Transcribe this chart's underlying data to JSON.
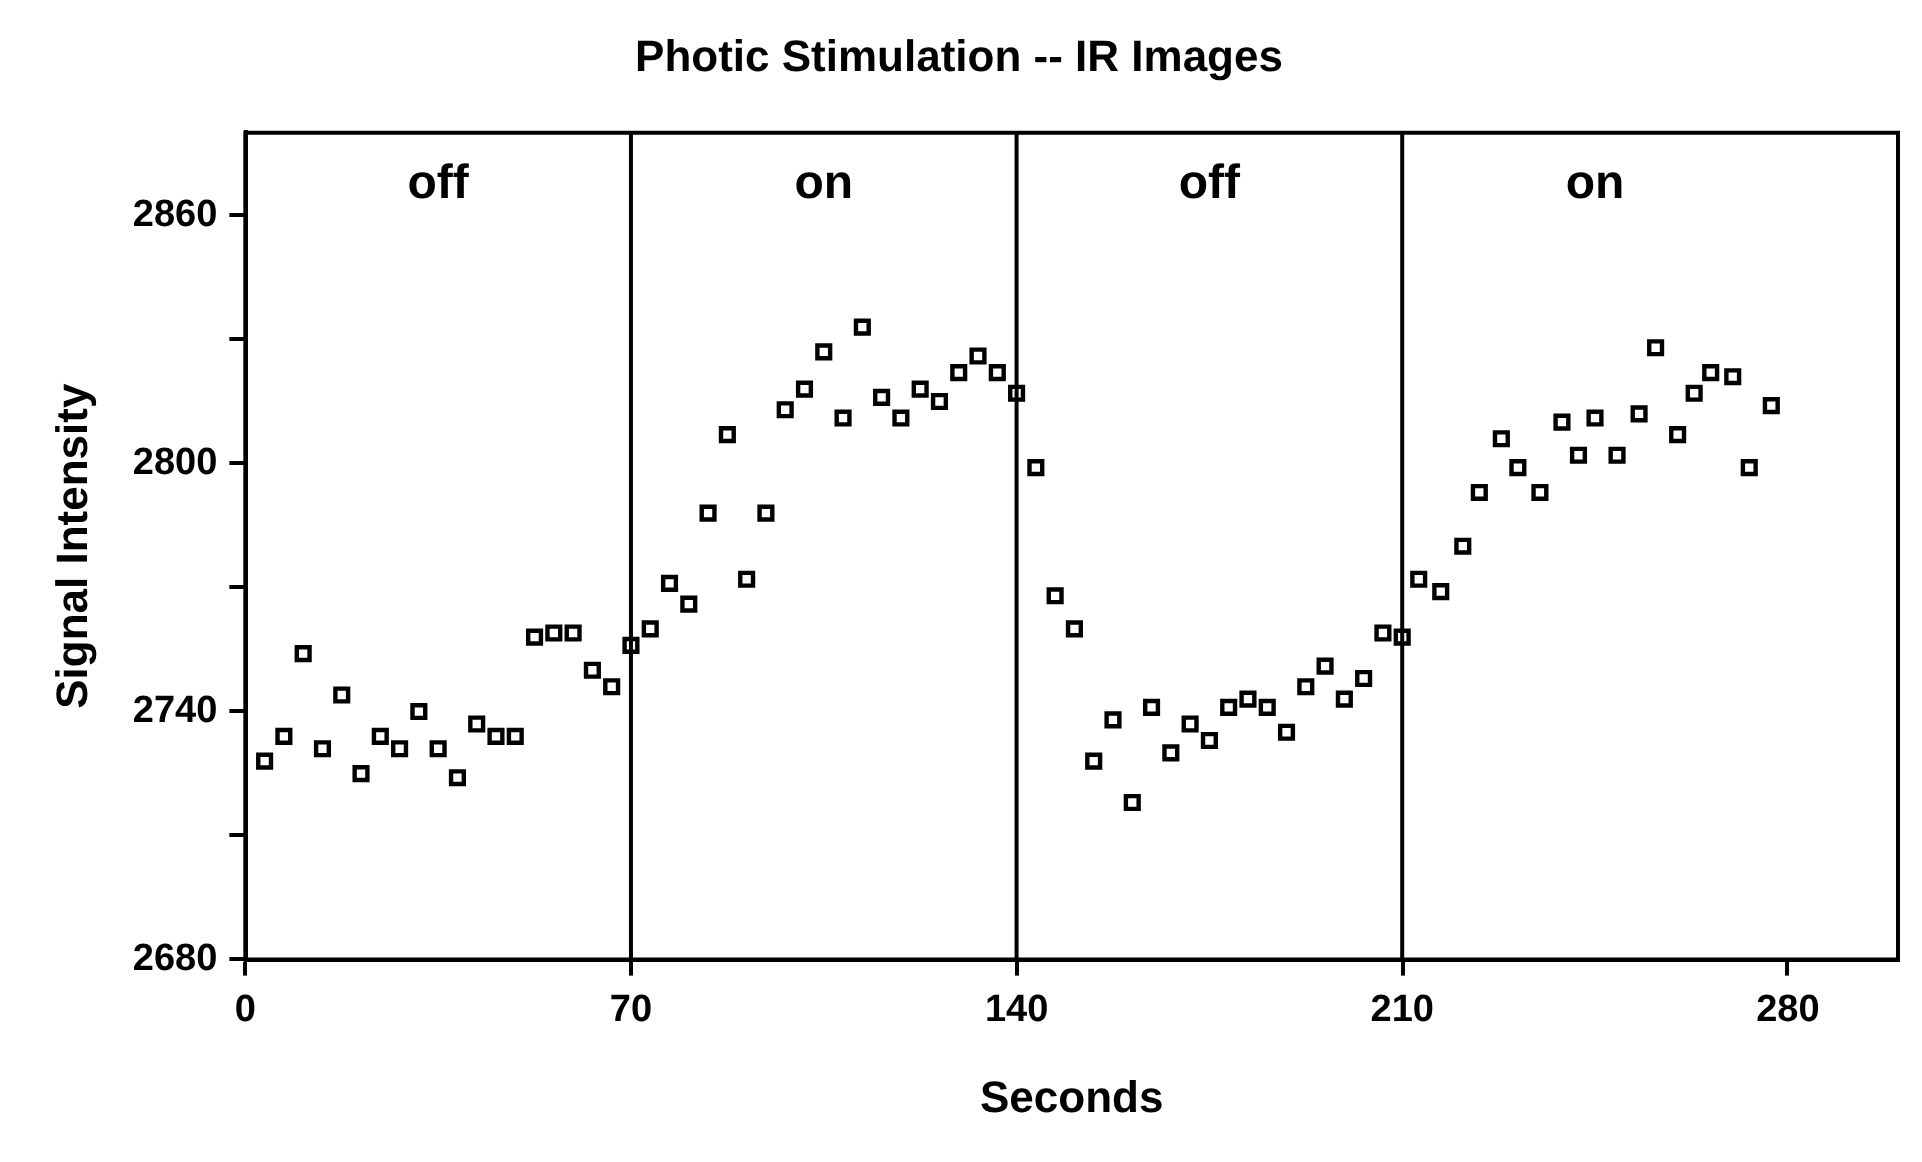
{
  "chart_data": {
    "type": "scatter",
    "title": "Photic Stimulation -- IR Images",
    "xlabel": "Seconds",
    "ylabel": "Signal Intensity",
    "marker": "square",
    "xlim": [
      0,
      300
    ],
    "xticks": [
      0,
      70,
      140,
      210,
      280
    ],
    "ylim": [
      2680,
      2880
    ],
    "yticks": [
      2680,
      {
        "value": 2710,
        "label": null
      },
      2740,
      {
        "value": 2770,
        "label": null
      },
      2800,
      {
        "value": 2830,
        "label": null
      },
      2860
    ],
    "ref_lines": [
      {
        "axis": "x",
        "value": 70,
        "color": "#000000"
      },
      {
        "axis": "x",
        "value": 140,
        "color": "#000000"
      },
      {
        "axis": "x",
        "value": 210,
        "color": "#000000"
      }
    ],
    "annotations": [
      "off",
      "on",
      "off",
      "on"
    ],
    "series": [
      {
        "color": "#000000",
        "x": [
          3.5,
          7,
          10.5,
          14,
          17.5,
          21,
          24.5,
          28,
          31.5,
          35,
          38.5,
          42,
          45.5,
          49,
          52.5,
          56,
          59.5,
          63,
          66.5,
          70,
          73.5,
          77,
          80.5,
          84,
          87.5,
          91,
          94.5,
          98,
          101.5,
          105,
          108.5,
          112,
          115.5,
          119,
          122.5,
          126,
          129.5,
          133,
          136.5,
          140,
          143.5,
          147,
          150.5,
          154,
          157.5,
          161,
          164.5,
          168,
          171.5,
          175,
          178.5,
          182,
          185.5,
          189,
          192.5,
          196,
          199.5,
          203,
          206.5,
          210,
          213,
          217,
          221,
          224,
          228,
          231,
          235,
          239,
          242,
          245,
          249,
          253,
          256,
          260,
          263,
          266,
          270,
          273,
          277
        ],
        "values": [
          2728,
          2734,
          2754,
          2731,
          2744,
          2725,
          2734,
          2731,
          2740,
          2731,
          2724,
          2737,
          2734,
          2734,
          2758,
          2759,
          2759,
          2750,
          2746,
          2756,
          2760,
          2771,
          2766,
          2788,
          2807,
          2772,
          2788,
          2813,
          2818,
          2827,
          2811,
          2833,
          2816,
          2811,
          2818,
          2815,
          2822,
          2826,
          2822,
          2817,
          2799,
          2768,
          2760,
          2728,
          2738,
          2718,
          2741,
          2730,
          2737,
          2733,
          2741,
          2743,
          2741,
          2735,
          2746,
          2751,
          2743,
          2748,
          2759,
          2758,
          2772,
          2769,
          2780,
          2793,
          2806,
          2799,
          2793,
          2810,
          2802,
          2811,
          2802,
          2812,
          2828,
          2807,
          2817,
          2822,
          2821,
          2799,
          2814
        ]
      }
    ]
  }
}
